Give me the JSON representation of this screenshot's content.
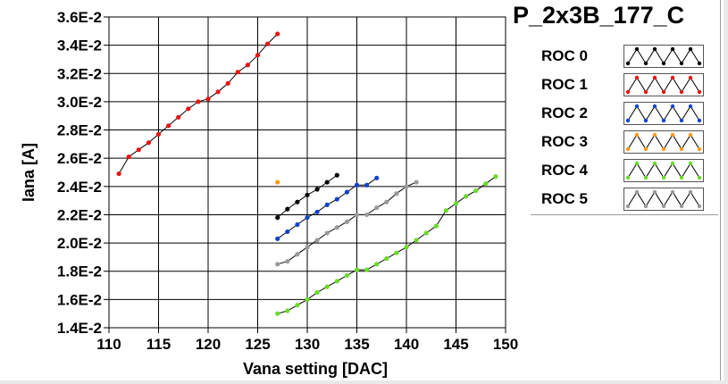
{
  "chart_data": {
    "type": "line",
    "title": "P_2x3B_177_C",
    "xlabel": "Vana setting [DAC]",
    "ylabel": "Iana [A]",
    "xlim": [
      110,
      150
    ],
    "ylim": [
      0.014,
      0.036
    ],
    "xticks": [
      110,
      115,
      120,
      125,
      130,
      135,
      140,
      145,
      150
    ],
    "yticks": [
      0.014,
      0.016,
      0.018,
      0.02,
      0.022,
      0.024,
      0.026,
      0.028,
      0.03,
      0.032,
      0.034,
      0.036
    ],
    "xtick_labels": [
      "110",
      "115",
      "120",
      "125",
      "130",
      "135",
      "140",
      "145",
      "150"
    ],
    "ytick_labels": [
      "1.4E-2",
      "1.6E-2",
      "1.8E-2",
      "2.0E-2",
      "2.2E-2",
      "2.4E-2",
      "2.6E-2",
      "2.8E-2",
      "3.0E-2",
      "3.2E-2",
      "3.4E-2",
      "3.6E-2"
    ],
    "grid": true,
    "legend_position": "right",
    "series": [
      {
        "name": "ROC 0",
        "color": "#000000",
        "x": [
          127,
          128,
          129,
          130,
          131,
          132,
          133
        ],
        "y": [
          0.0218,
          0.0224,
          0.0229,
          0.0234,
          0.0238,
          0.0243,
          0.0248
        ]
      },
      {
        "name": "ROC 1",
        "color": "#ee1111",
        "x": [
          111,
          112,
          113,
          114,
          115,
          116,
          117,
          118,
          119,
          120,
          121,
          122,
          123,
          124,
          125,
          126,
          127
        ],
        "y": [
          0.0249,
          0.0261,
          0.0266,
          0.0271,
          0.0277,
          0.0283,
          0.0289,
          0.0295,
          0.03,
          0.0302,
          0.0307,
          0.0313,
          0.0321,
          0.0326,
          0.0333,
          0.0341,
          0.0348
        ]
      },
      {
        "name": "ROC 2",
        "color": "#1144cc",
        "x": [
          127,
          128,
          129,
          130,
          131,
          132,
          133,
          134,
          135,
          136,
          137
        ],
        "y": [
          0.0203,
          0.0208,
          0.0213,
          0.0218,
          0.0222,
          0.0227,
          0.0231,
          0.0236,
          0.0241,
          0.0241,
          0.0246
        ]
      },
      {
        "name": "ROC 3",
        "color": "#ff9911",
        "x": [
          127
        ],
        "y": [
          0.0243
        ]
      },
      {
        "name": "ROC 4",
        "color": "#66dd22",
        "x": [
          127,
          128,
          129,
          130,
          131,
          132,
          133,
          134,
          135,
          136,
          137,
          138,
          139,
          140,
          141,
          142,
          143,
          144,
          145,
          146,
          147,
          148,
          149
        ],
        "y": [
          0.015,
          0.0152,
          0.0156,
          0.016,
          0.0165,
          0.0169,
          0.0173,
          0.0177,
          0.0181,
          0.0181,
          0.0185,
          0.0189,
          0.0193,
          0.0197,
          0.0202,
          0.0207,
          0.0212,
          0.0223,
          0.0228,
          0.0233,
          0.0237,
          0.0242,
          0.0247
        ]
      },
      {
        "name": "ROC 5",
        "color": "#999999",
        "x": [
          127,
          128,
          129,
          130,
          131,
          132,
          133,
          134,
          135,
          136,
          137,
          138,
          139,
          140,
          141
        ],
        "y": [
          0.0185,
          0.0187,
          0.0192,
          0.0197,
          0.0202,
          0.0207,
          0.0211,
          0.0215,
          0.022,
          0.022,
          0.0225,
          0.0229,
          0.0235,
          0.024,
          0.0243
        ]
      }
    ]
  }
}
